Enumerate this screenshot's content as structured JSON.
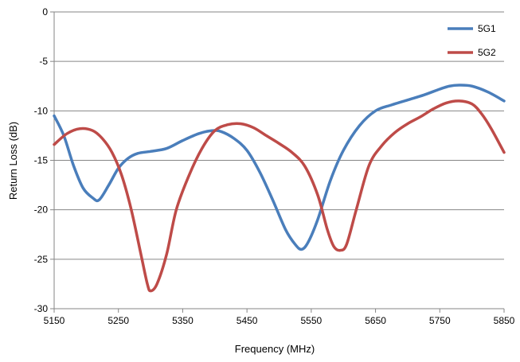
{
  "chart_data": {
    "type": "line",
    "title": "",
    "xlabel": "Frequency (MHz)",
    "ylabel": "Return Loss (dB)",
    "xlim": [
      5150,
      5850
    ],
    "ylim": [
      -30,
      0
    ],
    "x_ticks": [
      5150,
      5250,
      5350,
      5450,
      5550,
      5650,
      5750,
      5850
    ],
    "y_ticks": [
      0,
      -5,
      -10,
      -15,
      -20,
      -25,
      -30
    ],
    "grid": "horizontal",
    "legend_position": "top-right",
    "series": [
      {
        "name": "5G1",
        "color": "#4a7ebb",
        "x": [
          5150,
          5165,
          5180,
          5195,
          5210,
          5220,
          5235,
          5250,
          5265,
          5280,
          5300,
          5325,
          5350,
          5375,
          5395,
          5410,
          5430,
          5450,
          5470,
          5490,
          5510,
          5525,
          5535,
          5545,
          5560,
          5580,
          5600,
          5625,
          5650,
          5675,
          5700,
          5725,
          5750,
          5765,
          5780,
          5800,
          5825,
          5850
        ],
        "y": [
          -10.5,
          -12.5,
          -15.5,
          -17.8,
          -18.8,
          -19.0,
          -17.5,
          -15.8,
          -14.8,
          -14.3,
          -14.1,
          -13.8,
          -13.0,
          -12.3,
          -12.0,
          -12.1,
          -12.8,
          -14.0,
          -16.2,
          -19.0,
          -22.0,
          -23.5,
          -24.0,
          -23.3,
          -21.0,
          -17.0,
          -14.0,
          -11.5,
          -10.0,
          -9.4,
          -8.9,
          -8.4,
          -7.8,
          -7.5,
          -7.4,
          -7.5,
          -8.1,
          -9.0
        ]
      },
      {
        "name": "5G2",
        "color": "#be4b48",
        "x": [
          5150,
          5170,
          5190,
          5210,
          5225,
          5240,
          5255,
          5270,
          5285,
          5295,
          5300,
          5310,
          5325,
          5340,
          5360,
          5380,
          5400,
          5420,
          5440,
          5460,
          5480,
          5500,
          5520,
          5540,
          5560,
          5575,
          5585,
          5595,
          5605,
          5620,
          5640,
          5660,
          5680,
          5700,
          5720,
          5740,
          5760,
          5780,
          5800,
          5815,
          5830,
          5850
        ],
        "y": [
          -13.4,
          -12.3,
          -11.8,
          -12.0,
          -12.8,
          -14.2,
          -16.5,
          -20.0,
          -24.5,
          -27.5,
          -28.2,
          -27.5,
          -24.5,
          -20.0,
          -16.5,
          -13.8,
          -12.0,
          -11.4,
          -11.3,
          -11.7,
          -12.5,
          -13.3,
          -14.2,
          -15.6,
          -18.5,
          -22.0,
          -23.7,
          -24.1,
          -23.5,
          -20.0,
          -15.5,
          -13.5,
          -12.2,
          -11.3,
          -10.6,
          -9.8,
          -9.2,
          -9.0,
          -9.3,
          -10.3,
          -11.8,
          -14.2
        ]
      }
    ]
  }
}
